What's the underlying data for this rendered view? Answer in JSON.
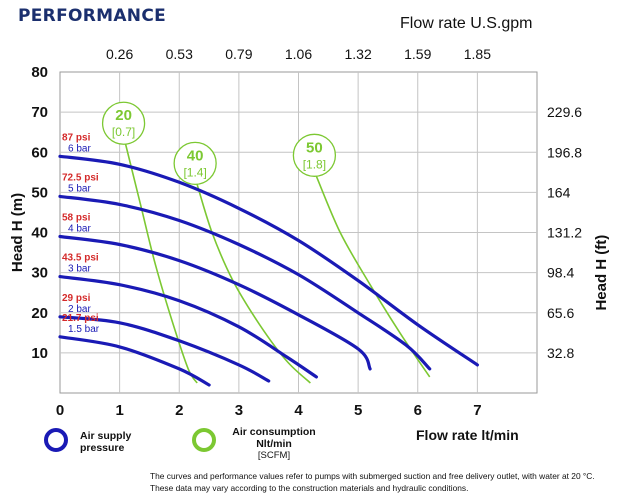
{
  "heading": "PERFORMANCE",
  "chart_data": {
    "type": "line",
    "xlabel": "Flow rate  lt/min",
    "x_top_label": "Flow rate U.S.gpm",
    "ylabel_left": "Head H (m)",
    "ylabel_right": "Head H (ft)",
    "xlim": [
      0,
      8
    ],
    "ylim": [
      0,
      80
    ],
    "x_ticks": [
      "0",
      "1",
      "2",
      "3",
      "4",
      "5",
      "6",
      "7"
    ],
    "x_top_ticks": [
      "0.26",
      "0.53",
      "0.79",
      "1.06",
      "1.32",
      "1.59",
      "1.85"
    ],
    "y_ticks": [
      "10",
      "20",
      "30",
      "40",
      "50",
      "60",
      "70",
      "80"
    ],
    "y_right_ticks": [
      "32.8",
      "65.6",
      "98.4",
      "131.2",
      "164",
      "196.8",
      "229.6"
    ],
    "grid": true,
    "pressure_series": [
      {
        "psi": "87 psi",
        "bar": "6 bar",
        "points": [
          [
            0,
            59
          ],
          [
            1,
            57
          ],
          [
            2,
            52.5
          ],
          [
            3,
            46
          ],
          [
            4,
            38
          ],
          [
            5,
            28
          ],
          [
            6,
            17
          ],
          [
            7,
            7
          ]
        ]
      },
      {
        "psi": "72.5 psi",
        "bar": "5 bar",
        "points": [
          [
            0,
            49
          ],
          [
            1,
            47
          ],
          [
            2,
            43
          ],
          [
            3,
            37
          ],
          [
            4,
            29.5
          ],
          [
            5,
            20
          ],
          [
            5.8,
            12
          ],
          [
            6.2,
            6
          ]
        ]
      },
      {
        "psi": "58 psi",
        "bar": "4 bar",
        "points": [
          [
            0,
            39
          ],
          [
            1,
            37
          ],
          [
            2,
            33
          ],
          [
            3,
            27
          ],
          [
            4,
            19.5
          ],
          [
            5,
            11
          ],
          [
            5.2,
            6
          ]
        ]
      },
      {
        "psi": "43.5 psi",
        "bar": "3 bar",
        "points": [
          [
            0,
            29
          ],
          [
            1,
            27
          ],
          [
            2,
            23
          ],
          [
            3,
            16.5
          ],
          [
            3.8,
            9
          ],
          [
            4.3,
            4
          ]
        ]
      },
      {
        "psi": "29 psi",
        "bar": "2 bar",
        "points": [
          [
            0,
            19
          ],
          [
            1,
            17.5
          ],
          [
            2,
            13
          ],
          [
            3,
            7
          ],
          [
            3.5,
            3
          ]
        ]
      },
      {
        "psi": "21.7 psi",
        "bar": "1.5 bar",
        "points": [
          [
            0,
            14
          ],
          [
            1,
            11.5
          ],
          [
            2,
            6
          ],
          [
            2.5,
            2
          ]
        ]
      }
    ],
    "air_series": [
      {
        "scfm_label": "20",
        "bracket": "[0.7]",
        "points": [
          [
            1.1,
            62
          ],
          [
            1.35,
            47
          ],
          [
            1.6,
            32
          ],
          [
            1.9,
            17
          ],
          [
            2.15,
            6
          ],
          [
            2.3,
            2.5
          ]
        ]
      },
      {
        "scfm_label": "40",
        "bracket": "[1.4]",
        "points": [
          [
            2.3,
            52
          ],
          [
            2.55,
            40
          ],
          [
            2.9,
            28
          ],
          [
            3.35,
            17
          ],
          [
            3.8,
            8
          ],
          [
            4.2,
            2.5
          ]
        ]
      },
      {
        "scfm_label": "50",
        "bracket": "[1.8]",
        "points": [
          [
            4.3,
            54
          ],
          [
            4.7,
            40
          ],
          [
            5.2,
            27
          ],
          [
            5.7,
            15
          ],
          [
            6.2,
            4
          ]
        ]
      }
    ],
    "colors": {
      "pressure": "#1a1ab5",
      "air": "#7cc832",
      "psi_text": "#d42a2a",
      "bar_text": "#1a1ab5"
    }
  },
  "legend": {
    "air_supply": "Air supply\npressure",
    "air_consumption": "Air consumption",
    "air_units": "Nlt/min",
    "air_scfm": "[SCFM]"
  },
  "footnote": "The curves and performance values refer to pumps with submerged suction and free delivery outlet, with water at 20 °C. These data may vary according to the construction materials and hydraulic conditions."
}
